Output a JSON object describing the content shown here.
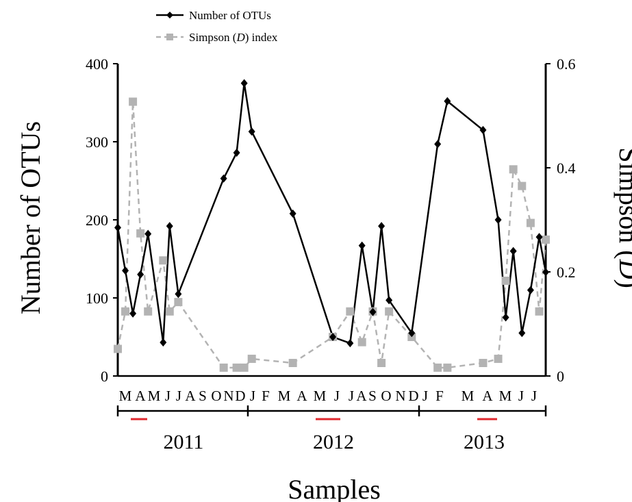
{
  "chart_data": {
    "type": "line",
    "xlabel": "Samples",
    "ylabel_left": "Number of OTUs",
    "ylabel_right_prefix": "Simpson (",
    "ylabel_right_symbol": "D",
    "ylabel_right_suffix": ")",
    "ylim_left": [
      0,
      400
    ],
    "ylim_right": [
      0,
      0.6
    ],
    "yticks_left": [
      "0",
      "100",
      "200",
      "300",
      "400"
    ],
    "yticks_right": [
      "0",
      "0.2",
      "0.4",
      "0.6"
    ],
    "legend_position": "top-left",
    "legend": [
      {
        "label": "Number of OTUs"
      },
      {
        "label_prefix": "Simpson (",
        "label_symbol": "D",
        "label_suffix": ") index"
      }
    ],
    "month_labels": [
      "M",
      "A",
      "M",
      "J",
      "J",
      "A",
      "S",
      "O",
      "N",
      "D",
      "J",
      "F",
      "M",
      "A",
      "M",
      "J",
      "J",
      "A",
      "S",
      "O",
      "N",
      "D",
      "J",
      "F",
      "M",
      "A",
      "M",
      "J",
      "J"
    ],
    "years": [
      "2011",
      "2012",
      "2013"
    ],
    "series": [
      {
        "name": "Number of OTUs",
        "color": "#000000",
        "marker": "diamond",
        "line": "solid",
        "x": [
          0,
          0.35,
          0.7,
          1.05,
          1.4,
          2.1,
          2.4,
          2.8,
          4.9,
          5.5,
          5.85,
          6.2,
          8.1,
          9.95,
          10.75,
          11.3,
          11.8,
          12.2,
          12.55,
          13.6,
          14.8,
          15.25,
          16.9,
          17.6,
          17.95,
          18.3,
          18.7,
          19.1,
          19.5,
          19.8
        ],
        "y": [
          190,
          135,
          80,
          130,
          182,
          43,
          192,
          105,
          253,
          286,
          375,
          313,
          208,
          50,
          42,
          167,
          82,
          192,
          97,
          55,
          297,
          352,
          315,
          200,
          75,
          160,
          55,
          110,
          178,
          133
        ]
      },
      {
        "name": "Simpson (D) index",
        "color": "#b3b3b3",
        "marker": "square",
        "line": "dashed",
        "x": [
          0,
          0.35,
          0.7,
          1.05,
          1.4,
          2.1,
          2.4,
          2.8,
          4.9,
          5.5,
          5.85,
          6.2,
          8.1,
          9.95,
          10.75,
          11.3,
          11.8,
          12.2,
          12.55,
          13.6,
          14.8,
          15.25,
          16.9,
          17.6,
          17.95,
          18.3,
          18.7,
          19.1,
          19.5,
          19.8
        ],
        "y": [
          0.052,
          0.124,
          0.527,
          0.274,
          0.124,
          0.222,
          0.124,
          0.142,
          0.016,
          0.016,
          0.016,
          0.033,
          0.025,
          0.075,
          0.124,
          0.065,
          0.124,
          0.025,
          0.124,
          0.075,
          0.016,
          0.016,
          0.025,
          0.033,
          0.183,
          0.397,
          0.365,
          0.294,
          0.124,
          0.262
        ]
      }
    ]
  }
}
